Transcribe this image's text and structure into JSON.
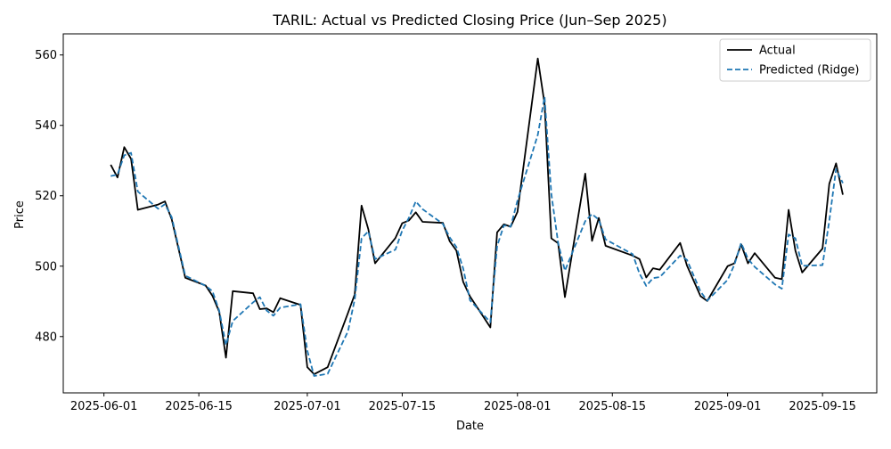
{
  "chart_data": {
    "type": "line",
    "title": "TARIL: Actual vs Predicted Closing Price (Jun–Sep 2025)",
    "xlabel": "Date",
    "ylabel": "Price",
    "xlim": [
      "2025-05-26",
      "2025-09-23"
    ],
    "ylim": [
      464,
      566
    ],
    "x_ticks": [
      "2025-06-01",
      "2025-06-15",
      "2025-07-01",
      "2025-07-15",
      "2025-08-01",
      "2025-08-15",
      "2025-09-01",
      "2025-09-15"
    ],
    "y_ticks": [
      480,
      500,
      520,
      540,
      560
    ],
    "grid": false,
    "legend": "top-right",
    "colors": {
      "actual": "#000000",
      "predicted": "#1f77b4"
    },
    "series": [
      {
        "name": "Actual",
        "style": "solid",
        "points": [
          [
            "2025-06-02",
            528.8
          ],
          [
            "2025-06-03",
            525.2
          ],
          [
            "2025-06-04",
            533.8
          ],
          [
            "2025-06-05",
            530.5
          ],
          [
            "2025-06-06",
            516.0
          ],
          [
            "2025-06-09",
            517.5
          ],
          [
            "2025-06-10",
            518.4
          ],
          [
            "2025-06-11",
            513.3
          ],
          [
            "2025-06-13",
            496.7
          ],
          [
            "2025-06-16",
            494.5
          ],
          [
            "2025-06-17",
            491.6
          ],
          [
            "2025-06-18",
            487.1
          ],
          [
            "2025-06-19",
            474.0
          ],
          [
            "2025-06-20",
            492.9
          ],
          [
            "2025-06-23",
            492.3
          ],
          [
            "2025-06-24",
            487.8
          ],
          [
            "2025-06-25",
            488.0
          ],
          [
            "2025-06-26",
            486.9
          ],
          [
            "2025-06-27",
            490.9
          ],
          [
            "2025-06-30",
            489.0
          ],
          [
            "2025-07-01",
            471.3
          ],
          [
            "2025-07-02",
            469.3
          ],
          [
            "2025-07-04",
            471.3
          ],
          [
            "2025-07-07",
            486.7
          ],
          [
            "2025-07-08",
            492.0
          ],
          [
            "2025-07-09",
            517.2
          ],
          [
            "2025-07-10",
            510.5
          ],
          [
            "2025-07-11",
            500.8
          ],
          [
            "2025-07-14",
            508.0
          ],
          [
            "2025-07-15",
            512.2
          ],
          [
            "2025-07-16",
            513.0
          ],
          [
            "2025-07-17",
            515.3
          ],
          [
            "2025-07-18",
            512.6
          ],
          [
            "2025-07-21",
            512.3
          ],
          [
            "2025-07-22",
            507.1
          ],
          [
            "2025-07-23",
            504.4
          ],
          [
            "2025-07-24",
            495.5
          ],
          [
            "2025-07-25",
            491.4
          ],
          [
            "2025-07-28",
            482.6
          ],
          [
            "2025-07-29",
            509.6
          ],
          [
            "2025-07-30",
            511.9
          ],
          [
            "2025-07-31",
            511.2
          ],
          [
            "2025-08-01",
            515.4
          ],
          [
            "2025-08-04",
            559.0
          ],
          [
            "2025-08-05",
            546.1
          ],
          [
            "2025-08-06",
            507.9
          ],
          [
            "2025-08-07",
            506.5
          ],
          [
            "2025-08-08",
            491.2
          ],
          [
            "2025-08-11",
            526.3
          ],
          [
            "2025-08-12",
            507.2
          ],
          [
            "2025-08-13",
            513.7
          ],
          [
            "2025-08-14",
            505.8
          ],
          [
            "2025-08-18",
            503.0
          ],
          [
            "2025-08-19",
            502.0
          ],
          [
            "2025-08-20",
            496.8
          ],
          [
            "2025-08-21",
            499.4
          ],
          [
            "2025-08-22",
            499.0
          ],
          [
            "2025-08-25",
            506.6
          ],
          [
            "2025-08-26",
            500.2
          ],
          [
            "2025-08-28",
            491.5
          ],
          [
            "2025-08-29",
            490.1
          ],
          [
            "2025-09-01",
            500.0
          ],
          [
            "2025-09-02",
            500.8
          ],
          [
            "2025-09-03",
            506.2
          ],
          [
            "2025-09-04",
            500.8
          ],
          [
            "2025-09-05",
            503.7
          ],
          [
            "2025-09-08",
            496.7
          ],
          [
            "2025-09-09",
            496.3
          ],
          [
            "2025-09-10",
            516.0
          ],
          [
            "2025-09-11",
            504.4
          ],
          [
            "2025-09-12",
            498.2
          ],
          [
            "2025-09-15",
            505.0
          ],
          [
            "2025-09-16",
            523.4
          ],
          [
            "2025-09-17",
            529.2
          ],
          [
            "2025-09-18",
            520.3
          ]
        ]
      },
      {
        "name": "Predicted (Ridge)",
        "style": "dashed",
        "points": [
          [
            "2025-06-02",
            525.6
          ],
          [
            "2025-06-03",
            526.0
          ],
          [
            "2025-06-04",
            531.5
          ],
          [
            "2025-06-05",
            532.2
          ],
          [
            "2025-06-06",
            521.2
          ],
          [
            "2025-06-09",
            516.3
          ],
          [
            "2025-06-10",
            517.6
          ],
          [
            "2025-06-11",
            513.9
          ],
          [
            "2025-06-13",
            497.3
          ],
          [
            "2025-06-16",
            494.4
          ],
          [
            "2025-06-17",
            492.9
          ],
          [
            "2025-06-18",
            487.4
          ],
          [
            "2025-06-19",
            477.6
          ],
          [
            "2025-06-20",
            484.4
          ],
          [
            "2025-06-23",
            489.7
          ],
          [
            "2025-06-24",
            491.2
          ],
          [
            "2025-06-25",
            487.4
          ],
          [
            "2025-06-26",
            485.9
          ],
          [
            "2025-06-27",
            488.2
          ],
          [
            "2025-06-30",
            489.2
          ],
          [
            "2025-07-01",
            476.0
          ],
          [
            "2025-07-02",
            468.8
          ],
          [
            "2025-07-04",
            469.4
          ],
          [
            "2025-07-07",
            481.5
          ],
          [
            "2025-07-08",
            490.6
          ],
          [
            "2025-07-09",
            507.9
          ],
          [
            "2025-07-10",
            509.9
          ],
          [
            "2025-07-11",
            502.0
          ],
          [
            "2025-07-14",
            504.7
          ],
          [
            "2025-07-15",
            510.1
          ],
          [
            "2025-07-16",
            513.8
          ],
          [
            "2025-07-17",
            518.4
          ],
          [
            "2025-07-18",
            516.2
          ],
          [
            "2025-07-21",
            512.0
          ],
          [
            "2025-07-22",
            508.2
          ],
          [
            "2025-07-23",
            505.4
          ],
          [
            "2025-07-24",
            499.3
          ],
          [
            "2025-07-25",
            490.3
          ],
          [
            "2025-07-28",
            484.1
          ],
          [
            "2025-07-29",
            505.7
          ],
          [
            "2025-07-30",
            511.6
          ],
          [
            "2025-07-31",
            511.2
          ],
          [
            "2025-08-01",
            518.6
          ],
          [
            "2025-08-04",
            537.3
          ],
          [
            "2025-08-05",
            548.1
          ],
          [
            "2025-08-06",
            520.5
          ],
          [
            "2025-08-07",
            506.6
          ],
          [
            "2025-08-08",
            498.7
          ],
          [
            "2025-08-11",
            512.8
          ],
          [
            "2025-08-12",
            514.8
          ],
          [
            "2025-08-13",
            513.2
          ],
          [
            "2025-08-14",
            507.6
          ],
          [
            "2025-08-18",
            503.4
          ],
          [
            "2025-08-19",
            497.9
          ],
          [
            "2025-08-20",
            494.4
          ],
          [
            "2025-08-21",
            496.6
          ],
          [
            "2025-08-22",
            496.9
          ],
          [
            "2025-08-25",
            503.0
          ],
          [
            "2025-08-26",
            501.8
          ],
          [
            "2025-08-28",
            492.8
          ],
          [
            "2025-08-29",
            490.2
          ],
          [
            "2025-09-01",
            496.1
          ],
          [
            "2025-09-02",
            500.4
          ],
          [
            "2025-09-03",
            506.6
          ],
          [
            "2025-09-04",
            502.1
          ],
          [
            "2025-09-05",
            499.8
          ],
          [
            "2025-09-08",
            494.8
          ],
          [
            "2025-09-09",
            493.6
          ],
          [
            "2025-09-10",
            509.0
          ],
          [
            "2025-09-11",
            507.9
          ],
          [
            "2025-09-12",
            500.1
          ],
          [
            "2025-09-15",
            500.3
          ],
          [
            "2025-09-16",
            512.9
          ],
          [
            "2025-09-17",
            527.6
          ],
          [
            "2025-09-18",
            523.6
          ]
        ]
      }
    ]
  }
}
